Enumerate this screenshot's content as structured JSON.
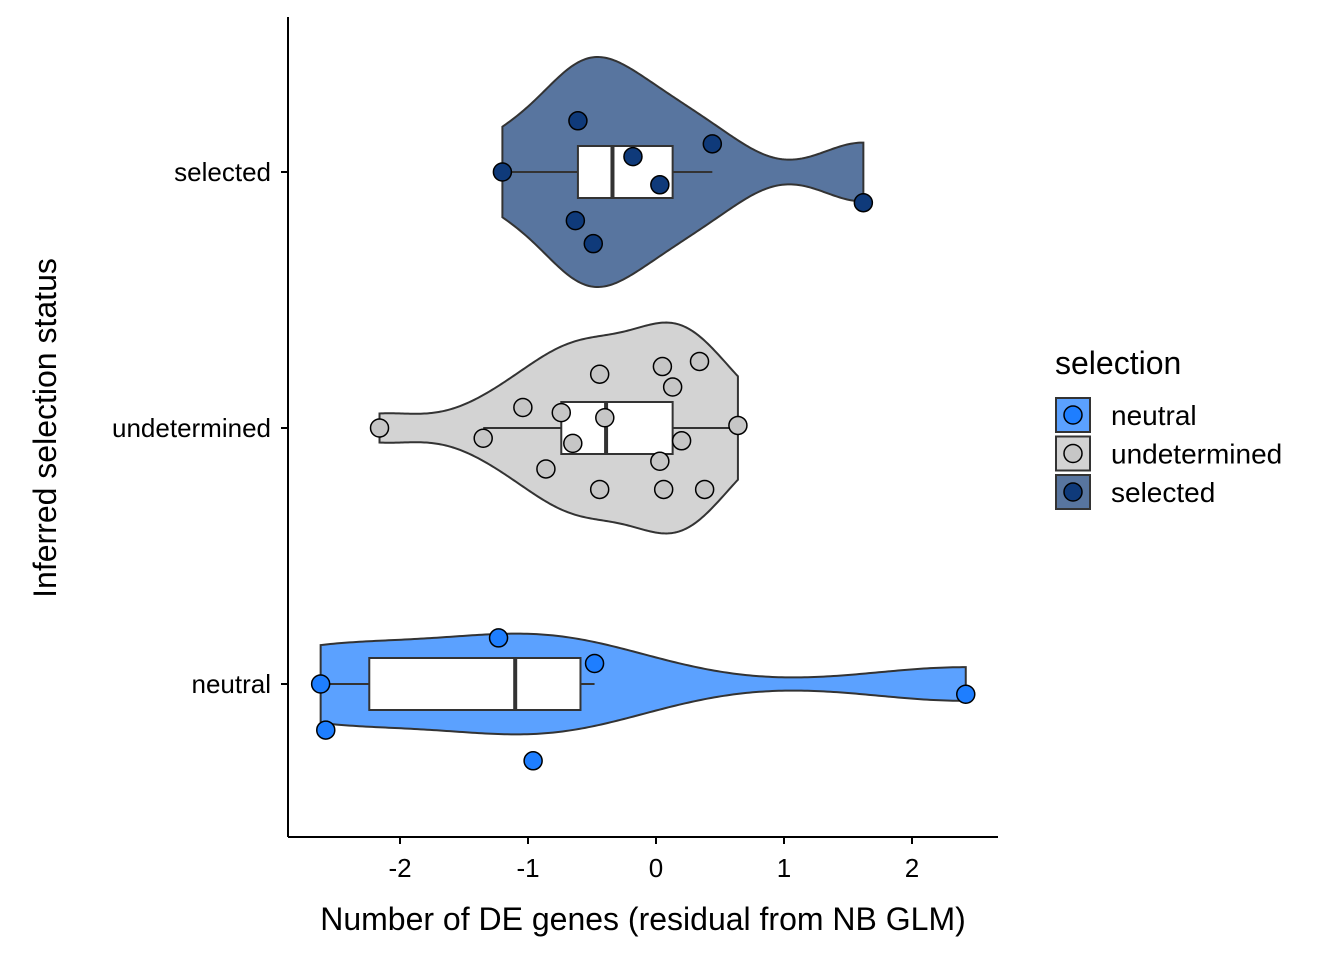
{
  "chart_data": {
    "type": "violin",
    "orientation": "horizontal",
    "xlabel": "Number of DE genes (residual from NB GLM)",
    "ylabel": "Inferred selection status",
    "xlim": [
      -2.85,
      2.65
    ],
    "xticks": [
      -2,
      -1,
      0,
      1,
      2
    ],
    "xtick_labels": [
      "-2",
      "-1",
      "0",
      "1",
      "2"
    ],
    "categories": [
      "neutral",
      "undetermined",
      "selected"
    ],
    "grid": false,
    "legend": {
      "title": "selection",
      "position": "right",
      "entries": [
        "neutral",
        "undetermined",
        "selected"
      ]
    },
    "series": [
      {
        "name": "neutral",
        "violin_color": "#5BA1FF",
        "point_color": "#1E7EFF",
        "points": [
          -2.62,
          -2.58,
          -1.23,
          -0.48,
          -0.96,
          2.42
        ],
        "jitter": [
          0,
          -0.18,
          0.18,
          0.08,
          -0.3,
          -0.04
        ],
        "box": {
          "whisker_low": -2.62,
          "q1": -2.24,
          "median": -1.1,
          "q3": -0.59,
          "whisker_high": -0.48
        }
      },
      {
        "name": "undetermined",
        "violin_color": "#D3D3D3",
        "point_color": "#C6C6C6",
        "points": [
          -2.16,
          -1.35,
          -1.04,
          -0.86,
          -0.74,
          -0.65,
          -0.44,
          -0.44,
          -0.4,
          0.05,
          0.13,
          0.34,
          0.2,
          0.03,
          0.06,
          0.38,
          0.64
        ],
        "jitter": [
          0,
          -0.04,
          0.08,
          -0.16,
          0.06,
          -0.06,
          0.21,
          -0.24,
          0.04,
          0.24,
          0.16,
          0.26,
          -0.05,
          -0.13,
          -0.24,
          -0.24,
          0.01
        ],
        "box": {
          "whisker_low": -1.35,
          "q1": -0.74,
          "median": -0.39,
          "q3": 0.13,
          "whisker_high": 0.64
        }
      },
      {
        "name": "selected",
        "violin_color": "#58759F",
        "point_color": "#0F3A7A",
        "points": [
          -0.61,
          0.44,
          -0.18,
          -1.2,
          0.03,
          1.62,
          -0.63,
          -0.49
        ],
        "jitter": [
          0.2,
          0.11,
          0.06,
          0,
          -0.05,
          -0.12,
          -0.19,
          -0.28
        ],
        "box": {
          "whisker_low": -1.2,
          "q1": -0.61,
          "median": -0.34,
          "q3": 0.13,
          "whisker_high": 0.44
        }
      }
    ]
  }
}
